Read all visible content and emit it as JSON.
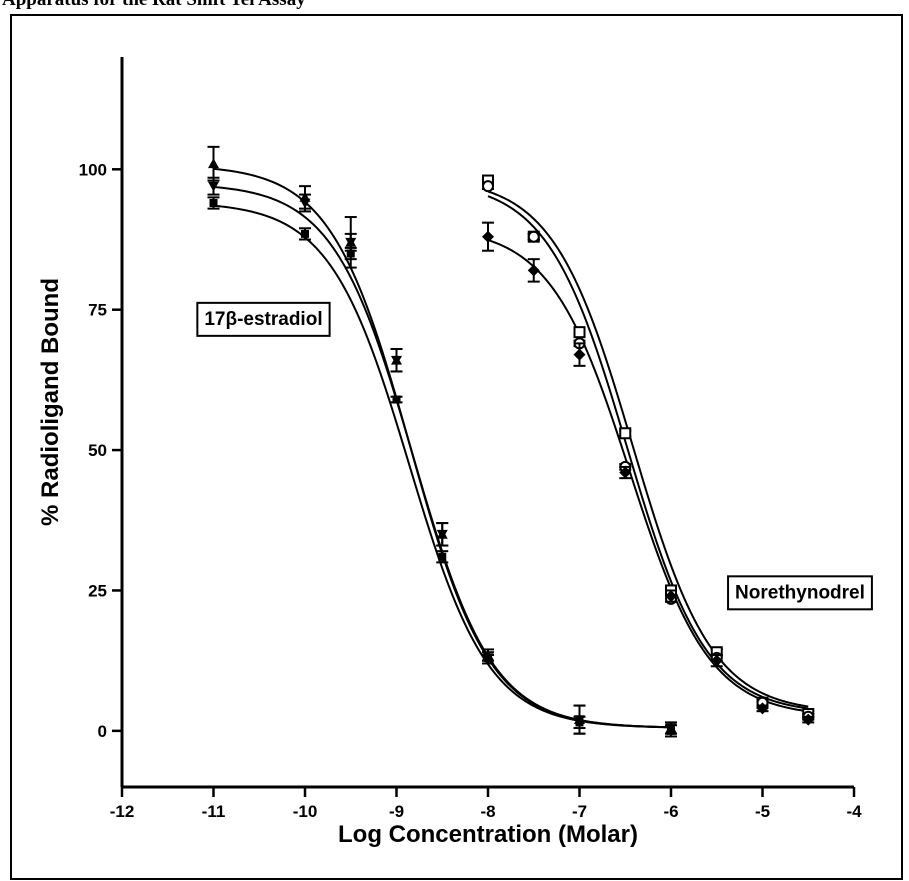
{
  "page": {
    "title": "Apparatus for the Rat Shift Tel Assay"
  },
  "chart_data": {
    "type": "scatter",
    "xlabel": "Log Concentration (Molar)",
    "ylabel": "% Radioligand Bound",
    "xlim": [
      -12,
      -4
    ],
    "ylim": [
      -10,
      120
    ],
    "xticks": [
      -12,
      -11,
      -10,
      -9,
      -8,
      -7,
      -6,
      -5,
      -4
    ],
    "yticks": [
      0,
      25,
      50,
      75,
      100
    ],
    "annotations": [
      {
        "text": "17β-estradiol",
        "x": -11.1,
        "y": 72.3
      },
      {
        "text": "Norethynodrel",
        "x": -5.3,
        "y": 23.6
      }
    ],
    "series": [
      {
        "group": "17β-estradiol",
        "marker": "triangle-up",
        "curve": {
          "top": 100.8,
          "bottom": 0.5,
          "logIC50": -8.85,
          "hill": -1.0
        },
        "x": [
          -11,
          -10,
          -9.5,
          -9,
          -8.5,
          -8,
          -7,
          -6
        ],
        "y": [
          101.0,
          95.0,
          87.0,
          66.0,
          35.0,
          13.5,
          2.0,
          0.5
        ],
        "err": [
          3.0,
          2.0,
          4.5,
          2.0,
          2.0,
          1.0,
          2.5,
          1.0
        ]
      },
      {
        "group": "17β-estradiol",
        "marker": "triangle-down",
        "curve": {
          "top": 97.5,
          "bottom": 0.5,
          "logIC50": -8.82,
          "hill": -1.0
        },
        "x": [
          -11,
          -10,
          -9.5,
          -9,
          -8.5,
          -8,
          -7,
          -6
        ],
        "y": [
          97.0,
          94.0,
          87.0,
          66.0,
          35.0,
          13.0,
          2.0,
          0.5
        ],
        "err": [
          1.5,
          1.5,
          1.5,
          2.0,
          2.0,
          1.0,
          2.5,
          1.0
        ]
      },
      {
        "group": "17β-estradiol",
        "marker": "square",
        "curve": {
          "top": 94.2,
          "bottom": 0.5,
          "logIC50": -8.86,
          "hill": -1.0
        },
        "x": [
          -11,
          -10,
          -9.5,
          -9,
          -8.5,
          -8,
          -7,
          -6
        ],
        "y": [
          94.0,
          88.5,
          85.0,
          59.0,
          31.0,
          13.0,
          1.5,
          0.0
        ],
        "err": [
          1.0,
          1.0,
          1.0,
          0.5,
          1.0,
          0.5,
          1.0,
          1.0
        ]
      },
      {
        "group": "Norethynodrel",
        "marker": "square-open",
        "curve": {
          "top": 98.5,
          "bottom": 3.2,
          "logIC50": -6.42,
          "hill": -1.0
        },
        "x": [
          -8,
          -7.5,
          -7,
          -6.5,
          -6,
          -5.5,
          -5,
          -4.5
        ],
        "y": [
          98.0,
          88.0,
          71.0,
          53.0,
          25.0,
          14.0,
          5.0,
          3.0
        ],
        "err": [
          0.5,
          0.5,
          0.5,
          0.5,
          0.5,
          0.5,
          0.5,
          0.5
        ]
      },
      {
        "group": "Norethynodrel",
        "marker": "circle-open",
        "curve": {
          "top": 98.0,
          "bottom": 3.0,
          "logIC50": -6.48,
          "hill": -1.0
        },
        "x": [
          -8,
          -7.5,
          -7,
          -6.5,
          -6,
          -5.5,
          -5,
          -4.5
        ],
        "y": [
          97.0,
          88.0,
          69.0,
          47.0,
          23.5,
          13.0,
          5.0,
          2.5
        ],
        "err": [
          0.5,
          0.5,
          0.5,
          0.5,
          0.5,
          0.5,
          0.5,
          0.5
        ]
      },
      {
        "group": "Norethynodrel",
        "marker": "diamond",
        "curve": {
          "top": 89.8,
          "bottom": 2.5,
          "logIC50": -6.45,
          "hill": -1.0
        },
        "x": [
          -8,
          -7.5,
          -7,
          -6.5,
          -6,
          -5.5,
          -5,
          -4.5
        ],
        "y": [
          88.0,
          82.0,
          67.0,
          46.0,
          24.0,
          12.5,
          4.0,
          2.0
        ],
        "err": [
          2.5,
          2.0,
          2.0,
          1.0,
          1.0,
          1.0,
          0.5,
          0.5
        ]
      }
    ]
  }
}
